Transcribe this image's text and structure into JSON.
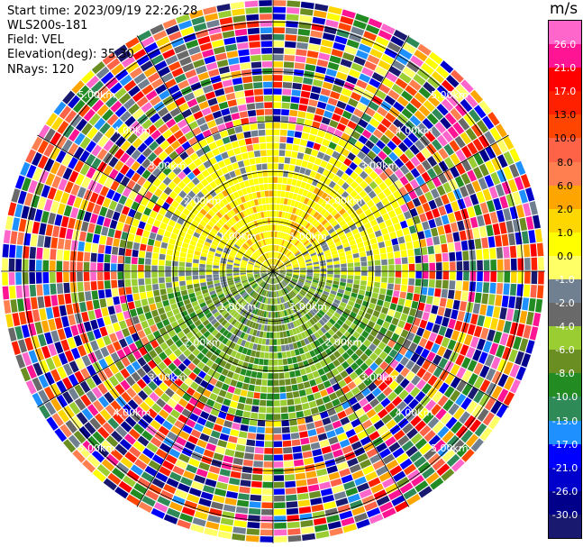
{
  "header": {
    "start_time": "Start time: 2023/09/19 22:26:28",
    "instrument": "WLS200s-181",
    "field": "Field: VEL",
    "elevation": "Elevation(deg): 35.30",
    "nrays": "NRays: 120"
  },
  "colorbar": {
    "unit": "m/s",
    "labels": [
      "26.0",
      "21.0",
      "17.0",
      "13.0",
      "10.0",
      "8.0",
      "6.0",
      "2.0",
      "1.0",
      "0.0",
      "-1.0",
      "-2.0",
      "-4.0",
      "-6.0",
      "-8.0",
      "-10.0",
      "-13.0",
      "-17.0",
      "-21.0",
      "-26.0",
      "-30.0"
    ],
    "colors": [
      "#ff66cc",
      "#ff1493",
      "#ff0000",
      "#ff2000",
      "#ff4500",
      "#ff6347",
      "#ff7f50",
      "#ffa500",
      "#ffd700",
      "#ffff00",
      "#ffff66",
      "#708090",
      "#696969",
      "#9acd32",
      "#6b8e23",
      "#228b22",
      "#2e8b57",
      "#1e90ff",
      "#0000ff",
      "#0000cd",
      "#00008b",
      "#191970"
    ]
  },
  "chart_data": {
    "type": "ppi",
    "field": "VEL",
    "unit": "m/s",
    "nrays": 120,
    "elevation_deg": 35.3,
    "range_rings_km": [
      1.0,
      2.0,
      3.0,
      4.0,
      5.0
    ],
    "ring_labels": [
      "1.00km",
      "2.00km",
      "3.00km",
      "4.00km",
      "5.00km"
    ],
    "spokes_deg": [
      0,
      30,
      60,
      90,
      120,
      150,
      180,
      210,
      240,
      270,
      300,
      330
    ]
  }
}
